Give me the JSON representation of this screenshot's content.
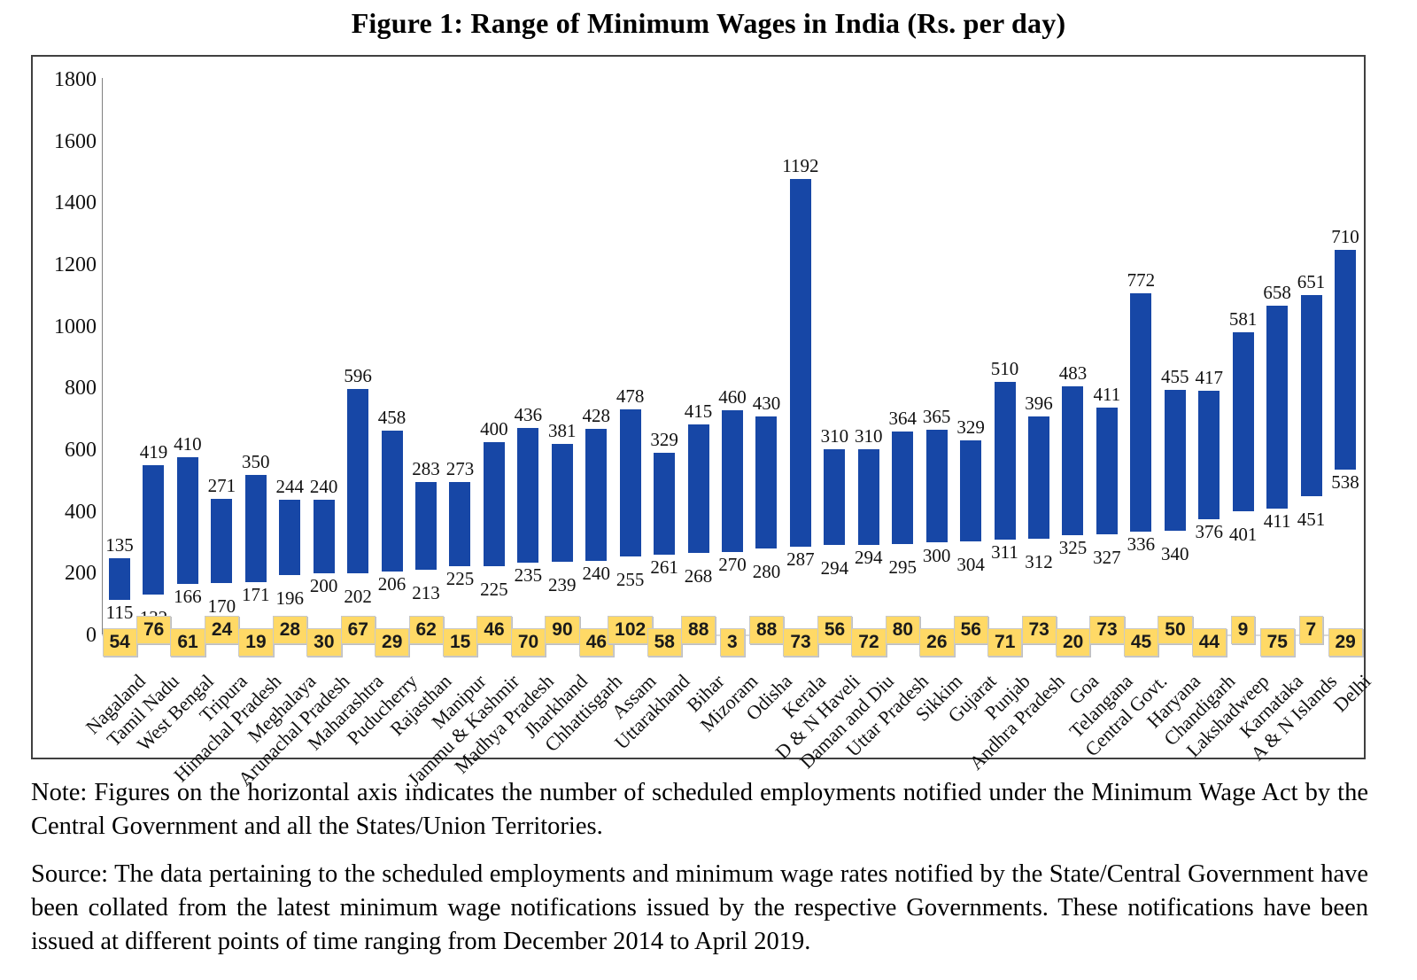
{
  "title": "Figure 1: Range of Minimum Wages in India (Rs. per day)",
  "note": "Note: Figures on the horizontal axis indicates the number of scheduled employments notified under the Minimum Wage Act by the Central Government and all the States/Union Territories.",
  "source": "Source: The data pertaining to the scheduled employments and minimum wage rates notified by the State/Central Government have been collated from the latest minimum wage notifications issued by the respective Governments. These notifications have been issued at different points of time ranging from December 2014 to April 2019.",
  "chart_data": {
    "type": "bar",
    "subtype": "floating-range-bars",
    "title": "Figure 1: Range of Minimum Wages in India (Rs. per day)",
    "xlabel": "",
    "ylabel": "",
    "ylim": [
      0,
      1800
    ],
    "yticks": [
      0,
      200,
      400,
      600,
      800,
      1000,
      1200,
      1400,
      1600,
      1800
    ],
    "grid": false,
    "legend": "none",
    "bar_color": "#1747A6",
    "employment_box_color": "#FFD966",
    "categories": [
      "Nagaland",
      "Tamil Nadu",
      "West Bengal",
      "Tripura",
      "Himachal Pradesh",
      "Meghalaya",
      "Arunachal Pradesh",
      "Maharashtra",
      "Puducherry",
      "Rajasthan",
      "Manipur",
      "Jammu & Kashmir",
      "Madhya Pradesh",
      "Jharkhand",
      "Chhattisgarh",
      "Assam",
      "Uttarakhand",
      "Bihar",
      "Mizoram",
      "Odisha",
      "Kerala",
      "D & N Haveli",
      "Daman and Diu",
      "Uttar Pradesh",
      "Sikkim",
      "Gujarat",
      "Punjab",
      "Andhra Pradesh",
      "Goa",
      "Telangana",
      "Central Govt.",
      "Haryana",
      "Chandigarh",
      "Lakshadweep",
      "Karnataka",
      "A & N Islands",
      "Delhi"
    ],
    "series": [
      {
        "name": "Minimum of wage range (Rs. per day)",
        "values": [
          115,
          132,
          166,
          170,
          171,
          196,
          200,
          202,
          206,
          213,
          225,
          225,
          235,
          239,
          240,
          255,
          261,
          268,
          270,
          280,
          287,
          294,
          294,
          295,
          300,
          304,
          311,
          312,
          325,
          327,
          336,
          340,
          376,
          401,
          411,
          451,
          538
        ]
      },
      {
        "name": "Maximum of wage range (Rs. per day)",
        "values": [
          135,
          419,
          410,
          271,
          350,
          244,
          240,
          596,
          458,
          283,
          273,
          400,
          436,
          381,
          428,
          478,
          329,
          415,
          460,
          430,
          1192,
          310,
          310,
          364,
          365,
          329,
          510,
          396,
          483,
          411,
          772,
          455,
          417,
          581,
          658,
          651,
          710
        ]
      },
      {
        "name": "Number of scheduled employments (yellow boxes on horizontal axis)",
        "values": [
          54,
          76,
          61,
          24,
          19,
          28,
          30,
          67,
          29,
          62,
          15,
          46,
          70,
          90,
          46,
          102,
          58,
          88,
          3,
          88,
          73,
          56,
          72,
          80,
          26,
          56,
          71,
          73,
          20,
          73,
          45,
          50,
          44,
          9,
          75,
          7,
          29
        ]
      }
    ]
  }
}
